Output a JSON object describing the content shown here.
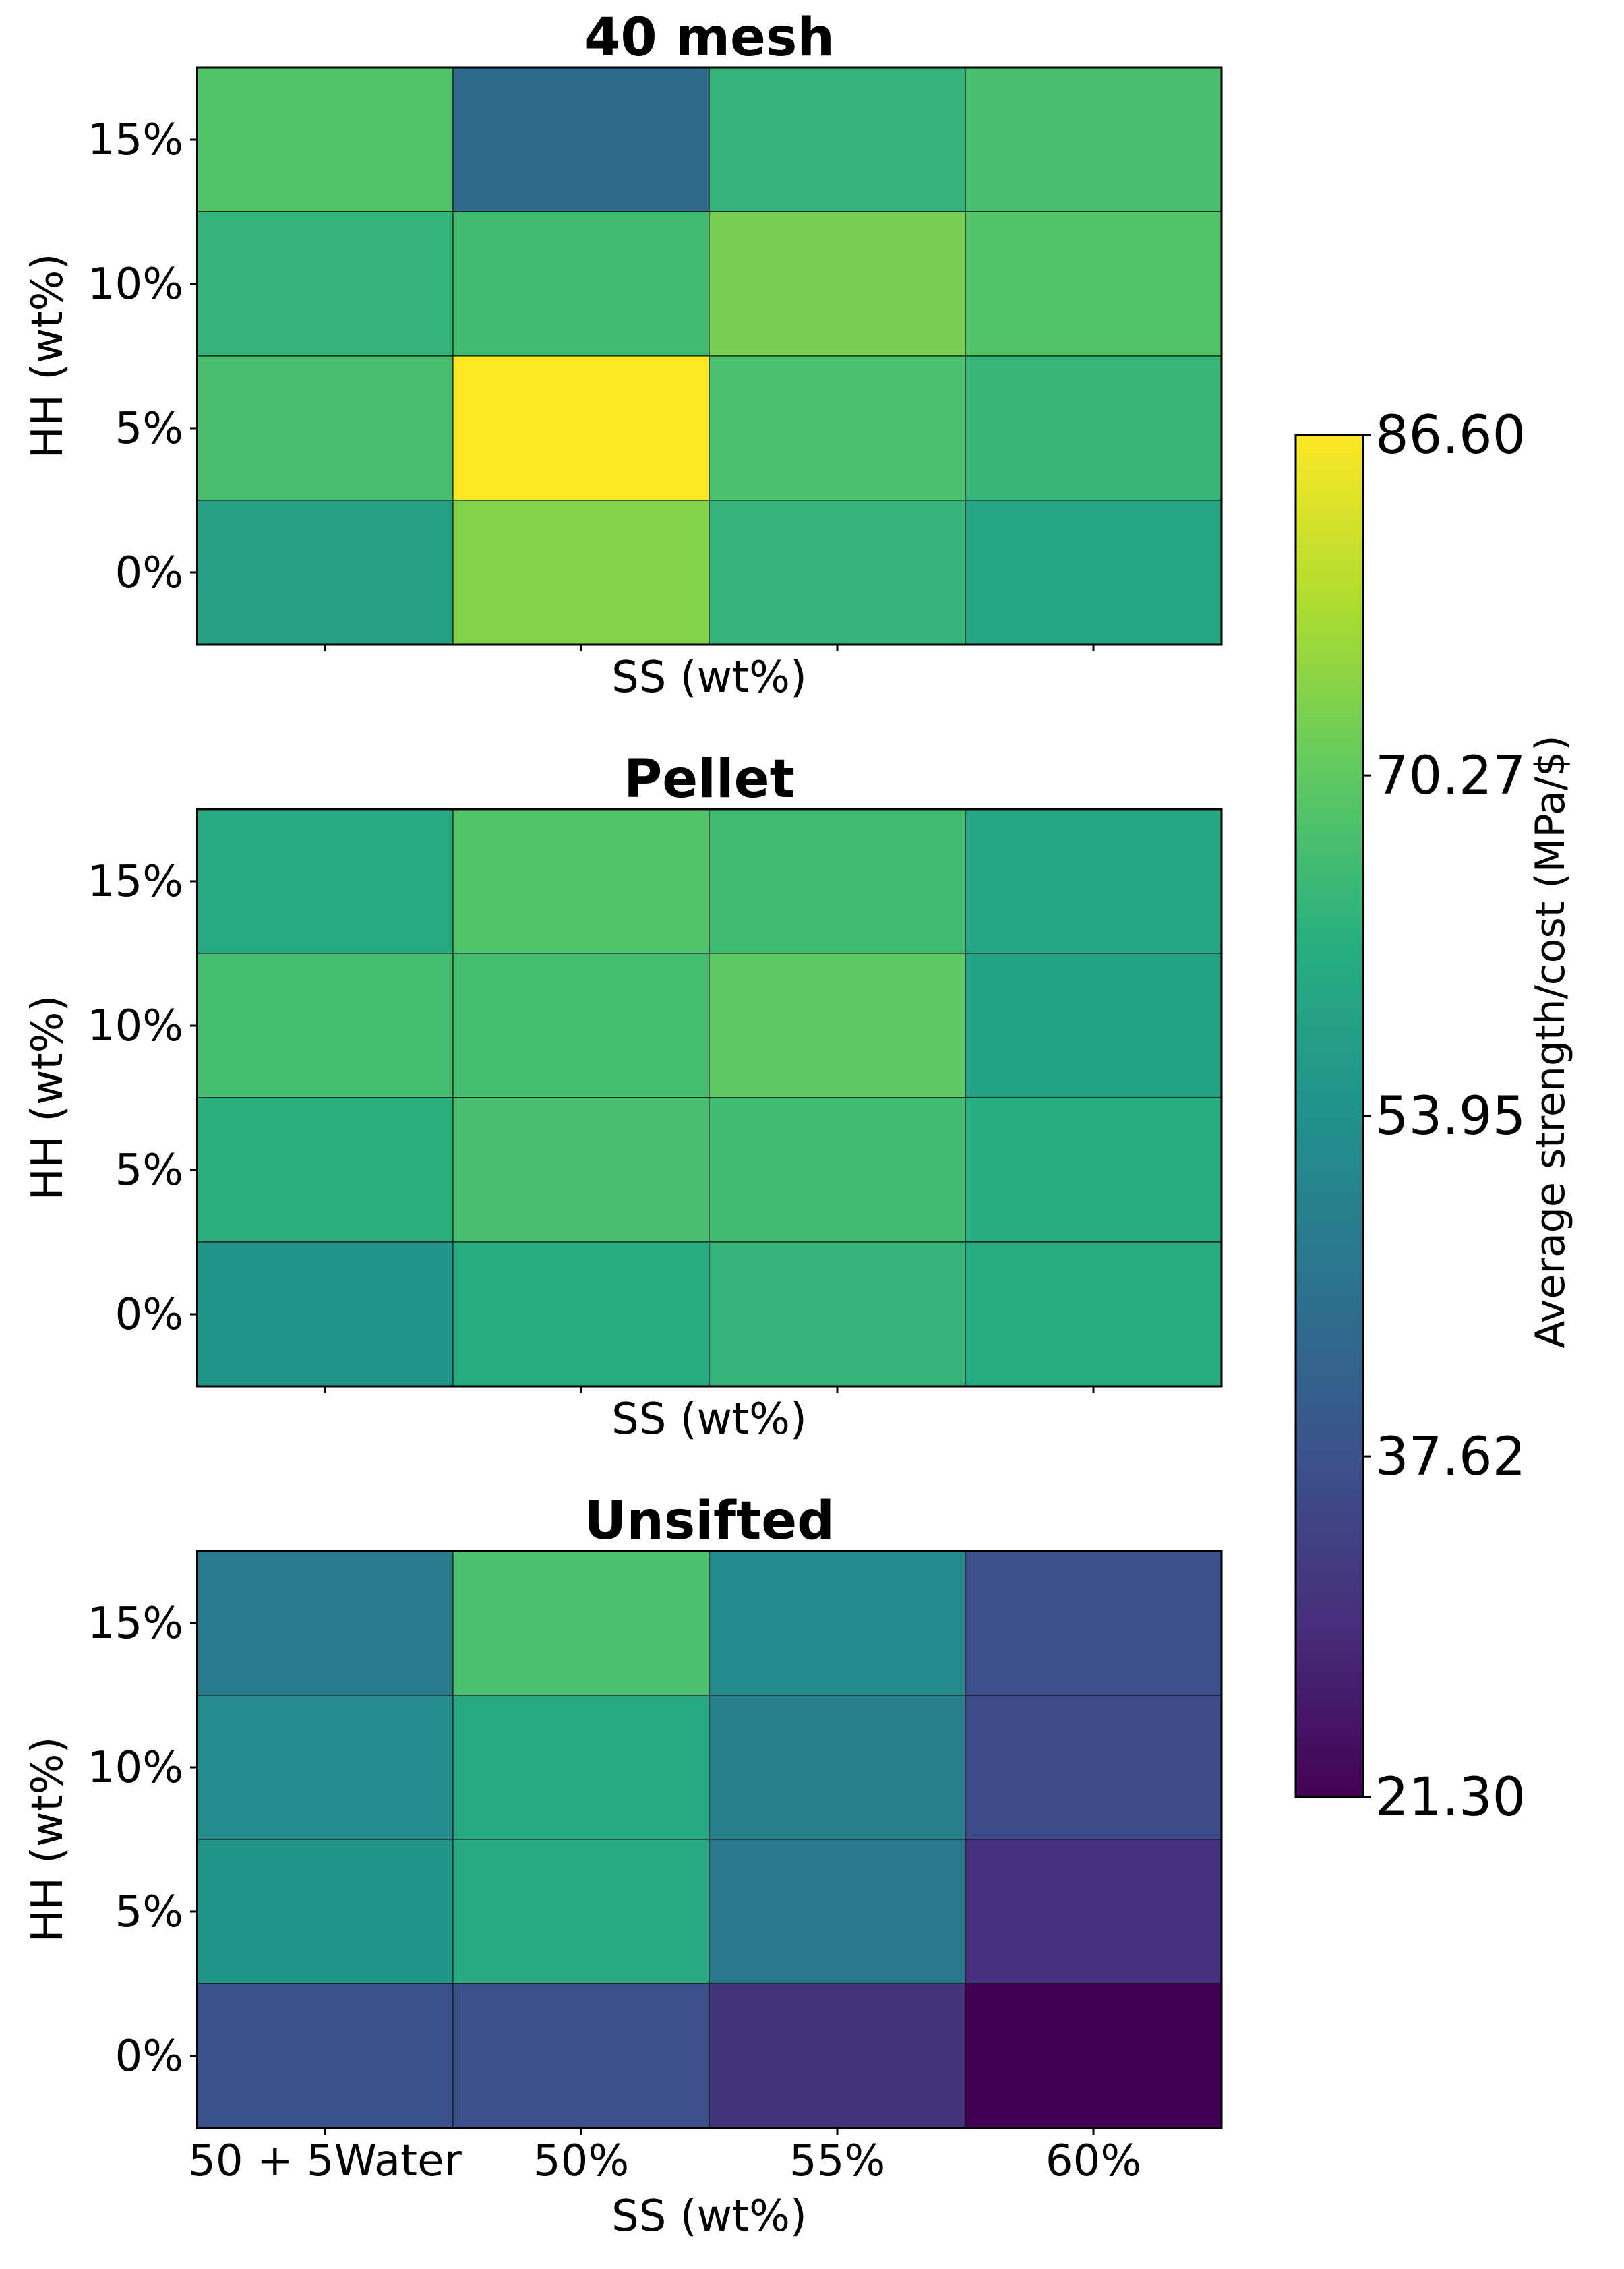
{
  "chart_data": {
    "type": "heatmap",
    "panels": [
      {
        "title": "40 mesh",
        "xlabel": "SS (wt%)",
        "ylabel": "HH (wt%)",
        "x_categories": [],
        "y_categories": [
          "15%",
          "10%",
          "5%",
          "0%"
        ],
        "values": [
          [
            68.5,
            44.0,
            63.5,
            67.0
          ],
          [
            64.0,
            66.0,
            73.0,
            68.5
          ],
          [
            67.0,
            86.6,
            67.5,
            64.5
          ],
          [
            58.5,
            74.0,
            64.0,
            59.5
          ]
        ]
      },
      {
        "title": "Pellet",
        "xlabel": "SS (wt%)",
        "ylabel": "HH (wt%)",
        "x_categories": [],
        "y_categories": [
          "15%",
          "10%",
          "5%",
          "0%"
        ],
        "values": [
          [
            61.0,
            68.5,
            66.0,
            60.0
          ],
          [
            66.5,
            66.5,
            70.3,
            59.0
          ],
          [
            62.5,
            67.0,
            66.0,
            62.0
          ],
          [
            55.0,
            61.5,
            64.0,
            61.5
          ]
        ]
      },
      {
        "title": "Unsifted",
        "xlabel": "SS (wt%)",
        "ylabel": "HH (wt%)",
        "x_categories": [
          "50 + 5Water",
          "50%",
          "55%",
          "60%"
        ],
        "y_categories": [
          "15%",
          "10%",
          "5%",
          "0%"
        ],
        "values": [
          [
            48.0,
            67.5,
            52.0,
            37.0
          ],
          [
            53.0,
            61.0,
            49.5,
            36.0
          ],
          [
            55.0,
            61.0,
            47.0,
            30.0
          ],
          [
            37.5,
            37.0,
            30.5,
            21.3
          ]
        ]
      }
    ],
    "colorbar": {
      "label": "Average strength/cost (MPa/$)",
      "min": 21.3,
      "max": 86.6,
      "ticks": [
        "21.30",
        "37.62",
        "53.95",
        "70.27",
        "86.60"
      ],
      "colormap": "viridis"
    }
  }
}
